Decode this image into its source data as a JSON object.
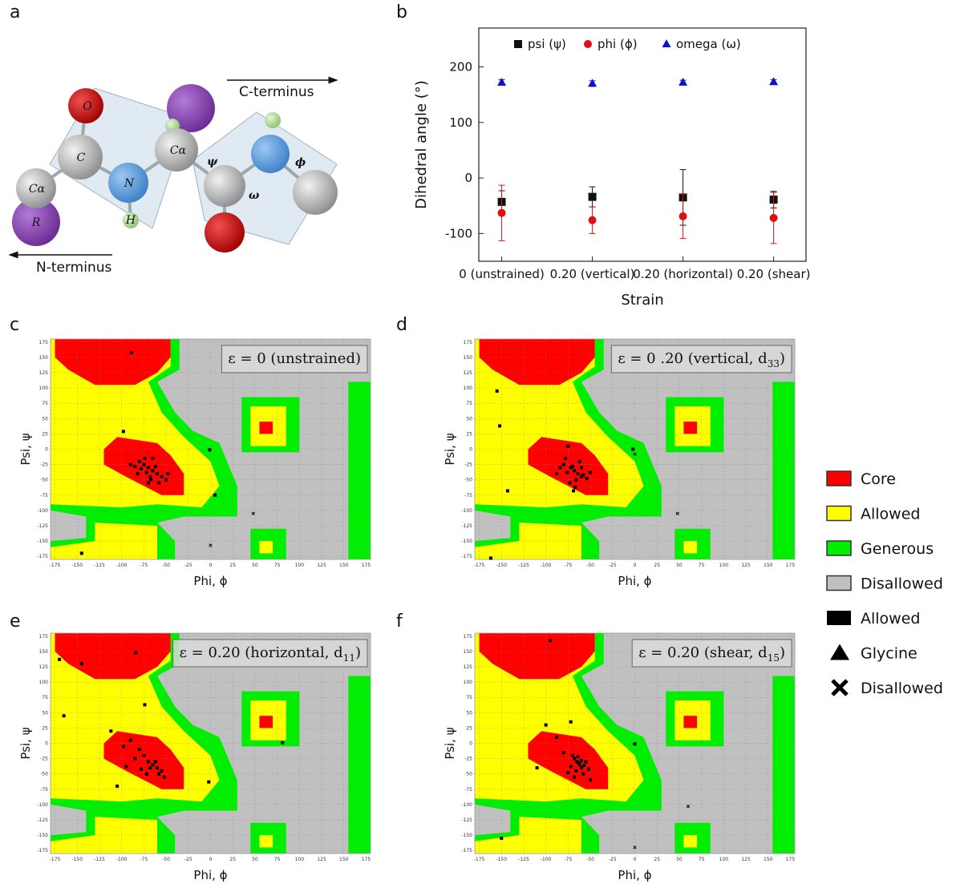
{
  "panel_labels": [
    "a",
    "b",
    "c",
    "d",
    "e",
    "f"
  ],
  "diagram": {
    "atoms": [
      "O",
      "C",
      "Cα",
      "N",
      "H",
      "R",
      "Cα"
    ],
    "angles": [
      "ψ",
      "ω",
      "ϕ"
    ],
    "directions": [
      "C-terminus",
      "N-terminus"
    ]
  },
  "legend": [
    {
      "label": "Core",
      "color": "#ff0000",
      "marker": "swatch"
    },
    {
      "label": "Allowed",
      "color": "#ffff00",
      "marker": "swatch"
    },
    {
      "label": "Generous",
      "color": "#00ee00",
      "marker": "swatch"
    },
    {
      "label": "Disallowed",
      "color": "#c0c0c0",
      "marker": "swatch"
    },
    {
      "label": "Allowed",
      "color": "#000000",
      "marker": "square"
    },
    {
      "label": "Glycine",
      "color": "#000000",
      "marker": "triangle"
    },
    {
      "label": "Disallowed",
      "color": "#000000",
      "marker": "cross"
    }
  ],
  "chart_data": [
    {
      "type": "errorbar",
      "xlabel": "Strain",
      "ylabel": "Dihedral angle (°)",
      "categories": [
        "0 (unstrained)",
        "0.20 (vertical)",
        "0.20 (horizontal)",
        "0.20 (shear)"
      ],
      "ylim": [
        -150,
        270
      ],
      "yticks": [
        -100,
        0,
        100,
        200
      ],
      "series": [
        {
          "name": "psi (ψ)",
          "color": "#111111",
          "marker": "square",
          "values": [
            -43,
            -34,
            -35,
            -39
          ],
          "errors": [
            20,
            18,
            50,
            15
          ]
        },
        {
          "name": "phi (ϕ)",
          "color": "#dd1111",
          "marker": "circle",
          "values": [
            -63,
            -76,
            -69,
            -72
          ],
          "errors": [
            50,
            24,
            40,
            46
          ]
        },
        {
          "name": "omega (ω)",
          "color": "#1111cc",
          "marker": "triangle",
          "values": [
            172,
            170,
            172,
            173
          ],
          "errors": [
            5,
            5,
            4,
            4
          ]
        }
      ]
    },
    {
      "type": "scatter",
      "annotation": {
        "text": "ε = 0  (unstrained)"
      },
      "xlabel": "Phi, ϕ",
      "ylabel": "Psi, ψ",
      "xlim": [
        -180,
        180
      ],
      "ylim": [
        -180,
        180
      ],
      "xticks": [
        -175,
        -150,
        -125,
        -100,
        -75,
        -50,
        -25,
        0,
        25,
        50,
        75,
        100,
        125,
        150,
        175
      ],
      "yticks": [
        -175,
        -150,
        -125,
        -100,
        -75,
        -50,
        -25,
        0,
        25,
        50,
        75,
        100,
        125,
        150,
        175
      ],
      "series": [
        {
          "marker": "square",
          "color": "#000000",
          "x": [
            -98,
            -89,
            -1,
            5,
            -145,
            -80,
            -75,
            -70,
            -65,
            -60,
            -72,
            -78,
            -68,
            -55,
            -50,
            -62,
            -85,
            -58,
            -67,
            -74,
            -90,
            -65,
            -48,
            -70,
            -82
          ],
          "y": [
            29,
            158,
            -1,
            -75,
            -170,
            -20,
            -25,
            -30,
            -35,
            -40,
            -38,
            -32,
            -45,
            -45,
            -50,
            -28,
            -28,
            -55,
            -50,
            -15,
            -25,
            -15,
            -40,
            -55,
            -40
          ]
        },
        {
          "marker": "cross",
          "color": "#000000",
          "x": [
            48,
            0
          ],
          "y": [
            -105,
            -157
          ]
        }
      ]
    },
    {
      "type": "scatter",
      "annotation": {
        "text": "ε = 0 .20  (vertical, d",
        "subscript": "33",
        "suffix": ")"
      },
      "xlabel": "Phi, ϕ",
      "ylabel": "Psi, ψ",
      "xlim": [
        -180,
        180
      ],
      "ylim": [
        -180,
        180
      ],
      "xticks": [
        -175,
        -150,
        -125,
        -100,
        -75,
        -50,
        -25,
        0,
        25,
        50,
        75,
        100,
        125,
        150,
        175
      ],
      "yticks": [
        -175,
        -150,
        -125,
        -100,
        -75,
        -50,
        -25,
        0,
        25,
        50,
        75,
        100,
        125,
        150,
        175
      ],
      "series": [
        {
          "marker": "square",
          "color": "#000000",
          "x": [
            -155,
            -152,
            -143,
            -162,
            -2,
            -75,
            -80,
            -72,
            -68,
            -64,
            -60,
            -76,
            -70,
            -58,
            -66,
            -62,
            -84,
            -54,
            -73,
            -67,
            -88,
            -60,
            -50,
            -69,
            -78
          ],
          "y": [
            95,
            38,
            -68,
            -178,
            0,
            5,
            -25,
            -30,
            -35,
            -40,
            -45,
            -38,
            -28,
            -42,
            -50,
            -20,
            -30,
            -48,
            -55,
            -62,
            -40,
            -30,
            -38,
            -68,
            -15
          ]
        },
        {
          "marker": "cross",
          "color": "#000000",
          "x": [
            48,
            0
          ],
          "y": [
            -105,
            -8
          ]
        }
      ]
    },
    {
      "type": "scatter",
      "annotation": {
        "text": "ε = 0.20  (horizontal, d",
        "subscript": "11",
        "suffix": ")"
      },
      "xlabel": "Phi, ϕ",
      "ylabel": "Psi, ψ",
      "xlim": [
        -180,
        180
      ],
      "ylim": [
        -180,
        180
      ],
      "xticks": [
        -175,
        -150,
        -125,
        -100,
        -75,
        -50,
        -25,
        0,
        25,
        50,
        75,
        100,
        125,
        150,
        175
      ],
      "yticks": [
        -175,
        -150,
        -125,
        -100,
        -75,
        -50,
        -25,
        0,
        25,
        50,
        75,
        100,
        125,
        150,
        175
      ],
      "series": [
        {
          "marker": "square",
          "color": "#000000",
          "x": [
            -170,
            -145,
            -165,
            -84,
            -74,
            81,
            -2,
            -105,
            -112,
            -98,
            -90,
            -80,
            -75,
            -70,
            -65,
            -60,
            -55,
            -52,
            -85,
            -72,
            -68,
            -62,
            -58,
            -78,
            -95
          ],
          "y": [
            137,
            130,
            45,
            148,
            63,
            1,
            -63,
            -70,
            20,
            -5,
            5,
            -10,
            -20,
            -30,
            -35,
            -40,
            -45,
            -55,
            -25,
            -50,
            -40,
            -30,
            -50,
            -42,
            -38
          ]
        }
      ]
    },
    {
      "type": "scatter",
      "annotation": {
        "text": "ε = 0.20  (shear, d",
        "subscript": "15",
        "suffix": ")"
      },
      "xlabel": "Phi, ϕ",
      "ylabel": "Psi, ψ",
      "xlim": [
        -180,
        180
      ],
      "ylim": [
        -180,
        180
      ],
      "xticks": [
        -175,
        -150,
        -125,
        -100,
        -75,
        -50,
        -25,
        0,
        25,
        50,
        75,
        100,
        125,
        150,
        175
      ],
      "yticks": [
        -175,
        -150,
        -125,
        -100,
        -75,
        -50,
        -25,
        0,
        25,
        50,
        75,
        100,
        125,
        150,
        175
      ],
      "series": [
        {
          "marker": "square",
          "color": "#000000",
          "x": [
            -95,
            -150,
            0,
            -100,
            -72,
            -88,
            -110,
            -70,
            -68,
            -65,
            -62,
            -60,
            -66,
            -58,
            -55,
            -72,
            -64,
            -60,
            -52,
            -75,
            -68,
            -63,
            -57,
            -80,
            -50
          ],
          "y": [
            168,
            -155,
            -1,
            30,
            35,
            10,
            -40,
            -20,
            -25,
            -30,
            -35,
            -40,
            -45,
            -50,
            -30,
            -38,
            -22,
            -28,
            -42,
            -48,
            -55,
            -32,
            -36,
            -15,
            -60
          ]
        },
        {
          "marker": "cross",
          "color": "#000000",
          "x": [
            60,
            0
          ],
          "y": [
            -103,
            -170
          ]
        }
      ]
    }
  ]
}
